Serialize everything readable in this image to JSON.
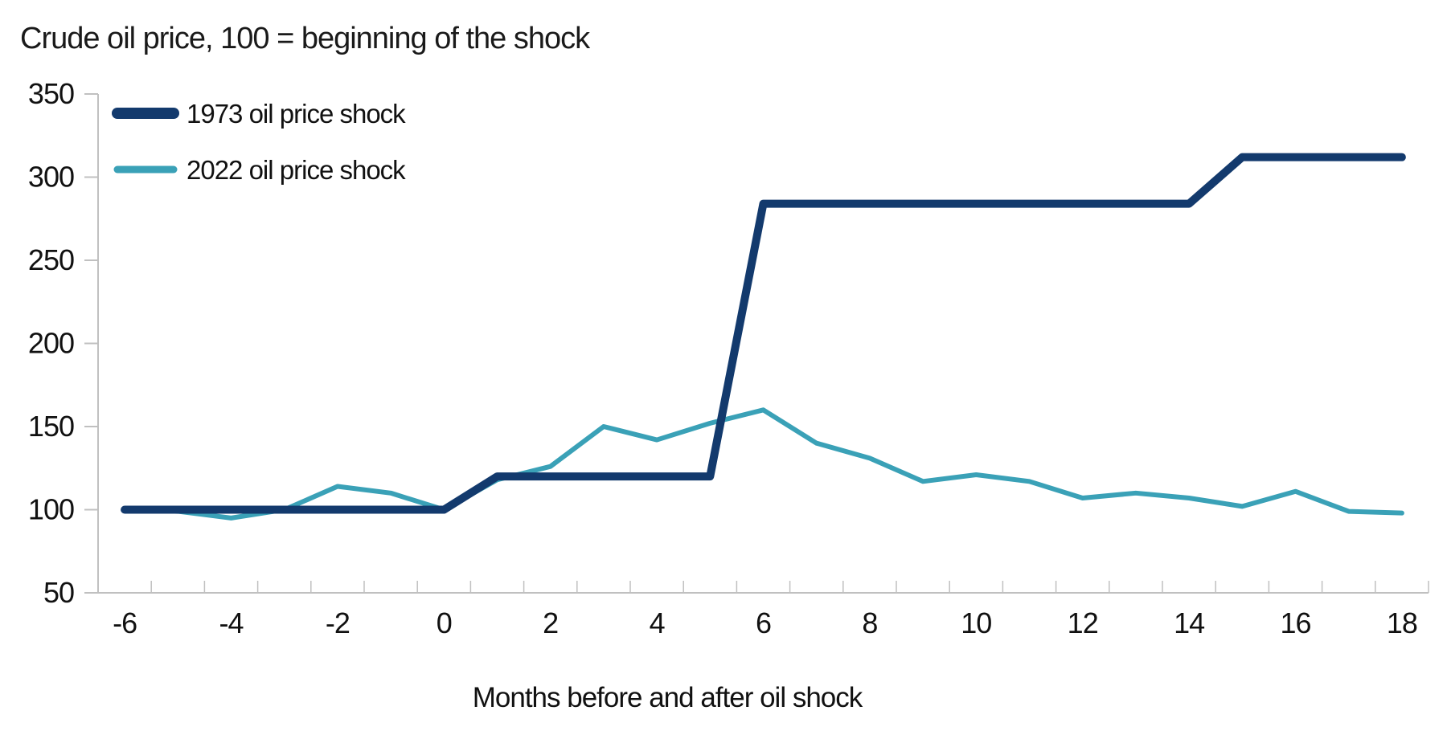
{
  "chart": {
    "title": "Crude oil price, 100 = beginning of the shock",
    "xlabel": "Months before and after oil shock"
  },
  "chart_data": {
    "type": "line",
    "title": "Crude oil price, 100 = beginning of the shock",
    "xlabel": "Months before and after oil shock",
    "ylabel": "",
    "x": [
      -6,
      -5,
      -4,
      -3,
      -2,
      -1,
      0,
      1,
      2,
      3,
      4,
      5,
      6,
      7,
      8,
      9,
      10,
      11,
      12,
      13,
      14,
      15,
      16,
      17,
      18
    ],
    "series": [
      {
        "name": "1973 oil price shock",
        "color": "#133a6d",
        "line_width": 10,
        "values": [
          100,
          100,
          100,
          100,
          100,
          100,
          100,
          120,
          120,
          120,
          120,
          120,
          284,
          284,
          284,
          284,
          284,
          284,
          284,
          284,
          284,
          312,
          312,
          312,
          312
        ]
      },
      {
        "name": "2022 oil price shock",
        "color": "#3aa1b7",
        "line_width": 6,
        "values": [
          100,
          99,
          95,
          100,
          114,
          110,
          100,
          118,
          126,
          150,
          142,
          152,
          160,
          140,
          131,
          117,
          121,
          117,
          107,
          110,
          107,
          102,
          111,
          99,
          98
        ]
      }
    ],
    "ylim": [
      50,
      350
    ],
    "yticks": [
      350,
      300,
      250,
      200,
      150,
      100,
      50
    ],
    "xtick_labels": [
      -6,
      -4,
      -2,
      0,
      2,
      4,
      6,
      8,
      10,
      12,
      14,
      16,
      18
    ],
    "grid": false,
    "legend_position": "top-left",
    "axis_color": "#c0c0c0",
    "text_color": "#111111"
  }
}
